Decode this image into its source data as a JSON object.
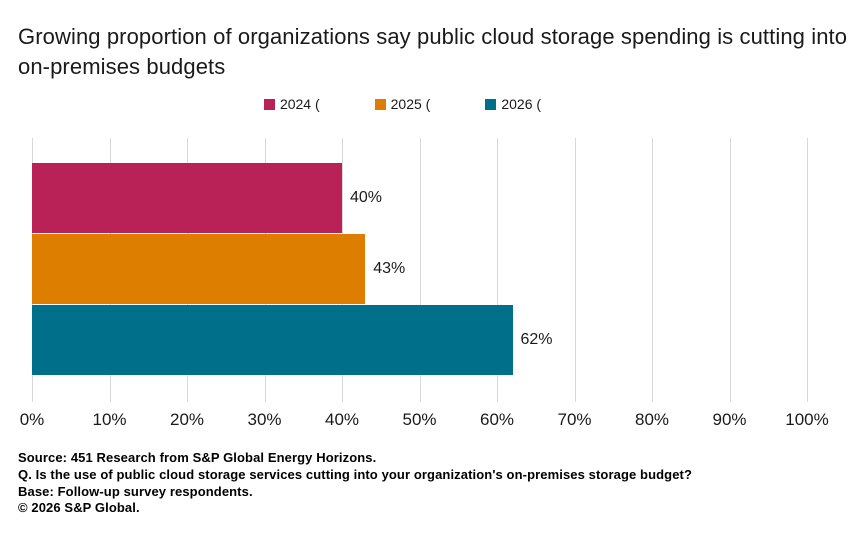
{
  "title": "Growing proportion of organizations say public cloud storage spending is cutting into on-premises budgets",
  "chart_data": {
    "type": "bar",
    "orientation": "horizontal",
    "title": "Growing proportion of organizations say public cloud storage spending is cutting into on-premises budgets",
    "xlim": [
      0,
      100
    ],
    "x_ticks": [
      "0%",
      "10%",
      "20%",
      "30%",
      "40%",
      "50%",
      "60%",
      "70%",
      "80%",
      "90%",
      "100%"
    ],
    "grid": "vertical",
    "legend_position": "top-center",
    "series": [
      {
        "name": "2024 (",
        "year": "2024",
        "value": 40,
        "value_label": "40%",
        "color": "#b82257"
      },
      {
        "name": "2025 (",
        "year": "2025",
        "value": 43,
        "value_label": "43%",
        "color": "#dd7e00"
      },
      {
        "name": "2026 (",
        "year": "2026",
        "value": 62,
        "value_label": "62%",
        "color": "#006f8a"
      }
    ]
  },
  "footer": {
    "lines": [
      "Source: 451 Research from S&P Global Energy Horizons.",
      "Q. Is the use of public cloud storage services cutting into your organization's on-premises storage budget?",
      "Base: Follow-up survey respondents.",
      "© 2026 S&P Global."
    ]
  },
  "colors": {
    "bar_2024": "#b82257",
    "bar_2025": "#dd7e00",
    "bar_2026": "#006f8a",
    "gridline": "#d8d8d8",
    "text": "#1a1a1a",
    "background": "#ffffff"
  }
}
